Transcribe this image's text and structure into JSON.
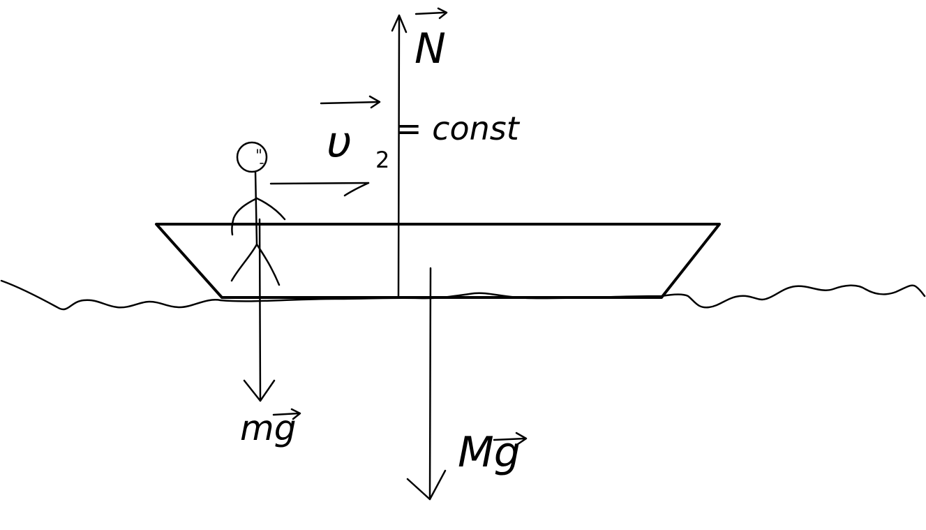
{
  "diagram": {
    "labels": {
      "normal_force": "N",
      "velocity": "υ",
      "velocity_subscript": "2",
      "velocity_relation": "= const",
      "person_weight": "mg",
      "boat_weight": "Mg"
    },
    "colors": {
      "ink": "#000000",
      "background": "#ffffff"
    }
  }
}
